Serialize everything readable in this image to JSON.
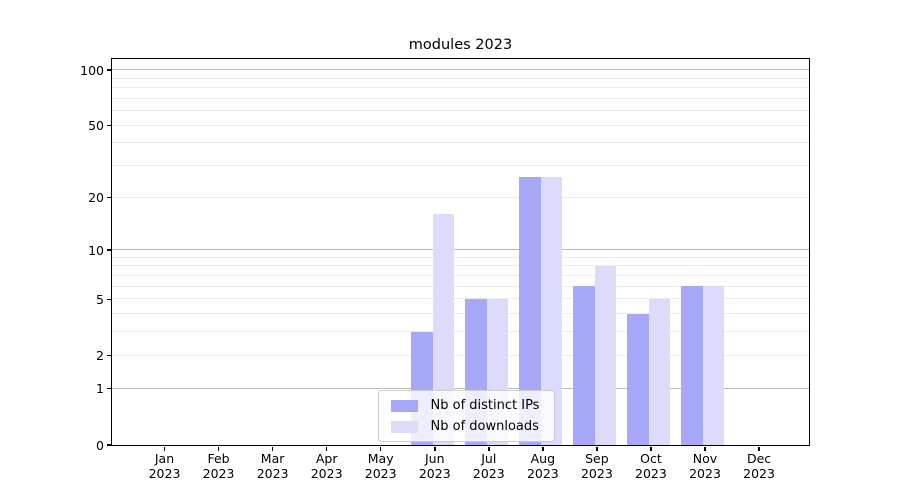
{
  "chart_data": {
    "type": "bar",
    "title": "modules 2023",
    "categories": [
      "Jan",
      "Feb",
      "Mar",
      "Apr",
      "May",
      "Jun",
      "Jul",
      "Aug",
      "Sep",
      "Oct",
      "Nov",
      "Dec"
    ],
    "year_label": "2023",
    "series": [
      {
        "name": "Nb of distinct IPs",
        "color": "#a8a8f9",
        "values": [
          0,
          0,
          0,
          0,
          0,
          3,
          5,
          26,
          6,
          4,
          6,
          0
        ]
      },
      {
        "name": "Nb of downloads",
        "color": "#dcdcfa",
        "values": [
          0,
          0,
          0,
          0,
          0,
          16,
          5,
          26,
          8,
          5,
          6,
          0
        ]
      }
    ],
    "yscale": "log1p",
    "ylim": [
      0,
      114
    ],
    "yticks": [
      0,
      1,
      2,
      5,
      10,
      20,
      50,
      100
    ],
    "grid": {
      "on": true,
      "major": [
        1,
        10,
        100
      ],
      "minor": [
        2,
        3,
        4,
        5,
        6,
        7,
        8,
        9,
        20,
        30,
        40,
        50,
        60,
        70,
        80,
        90
      ]
    },
    "legend": {
      "position": "lower-center"
    }
  }
}
